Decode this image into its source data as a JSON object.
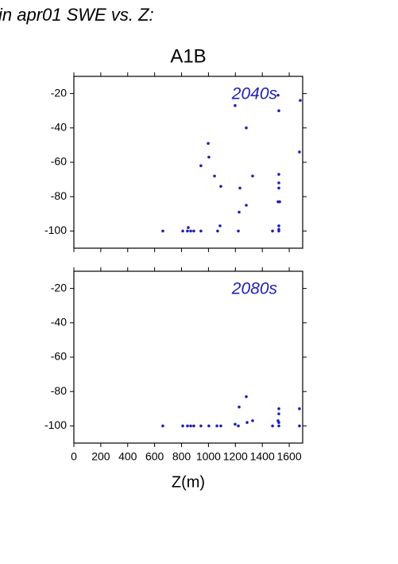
{
  "page_title": "in apr01 SWE vs. Z:",
  "chart_data": [
    {
      "type": "scatter",
      "title": "A1B",
      "annotation": "2040s",
      "color": "#1f1fb4",
      "xlim": [
        0,
        1700
      ],
      "xticks": [
        0,
        200,
        400,
        600,
        800,
        1000,
        1200,
        1400,
        1600
      ],
      "xtick_labels": false,
      "ylim": [
        -110,
        -10
      ],
      "yticks": [
        -20,
        -40,
        -60,
        -80,
        -100
      ],
      "x": [
        1517,
        1198,
        1682,
        1523,
        1281,
        1676,
        998,
        1003,
        944,
        1045,
        1328,
        1523,
        1523,
        1092,
        1234,
        1523,
        1517,
        1529,
        1281,
        1228,
        1086,
        850,
        661,
        809,
        844,
        868,
        891,
        944,
        1068,
        1222,
        1476,
        1523,
        1523,
        1523
      ],
      "values": [
        -21,
        -27,
        -24,
        -30,
        -40,
        -54,
        -49,
        -57,
        -62,
        -68,
        -68,
        -67,
        -72,
        -74,
        -75,
        -75,
        -83,
        -83,
        -85,
        -89,
        -97,
        -98,
        -100,
        -100,
        -100,
        -100,
        -100,
        -100,
        -100,
        -100,
        -100,
        -97,
        -99,
        -100
      ]
    },
    {
      "type": "scatter",
      "annotation": "2080s",
      "color": "#1f1fb4",
      "xlabel": "Z(m)",
      "xlim": [
        0,
        1700
      ],
      "xticks": [
        0,
        200,
        400,
        600,
        800,
        1000,
        1200,
        1400,
        1600
      ],
      "xtick_labels": true,
      "ylim": [
        -110,
        -10
      ],
      "yticks": [
        -20,
        -40,
        -60,
        -80,
        -100
      ],
      "x": [
        661,
        809,
        844,
        868,
        891,
        944,
        1003,
        1063,
        1092,
        1198,
        1222,
        1228,
        1281,
        1287,
        1328,
        1476,
        1517,
        1523,
        1523,
        1523,
        1523,
        1676,
        1676
      ],
      "values": [
        -100,
        -100,
        -100,
        -100,
        -100,
        -100,
        -100,
        -100,
        -100,
        -99,
        -100,
        -89,
        -83,
        -98,
        -97,
        -100,
        -97,
        -90,
        -93,
        -98,
        -100,
        -90,
        -100
      ]
    }
  ]
}
